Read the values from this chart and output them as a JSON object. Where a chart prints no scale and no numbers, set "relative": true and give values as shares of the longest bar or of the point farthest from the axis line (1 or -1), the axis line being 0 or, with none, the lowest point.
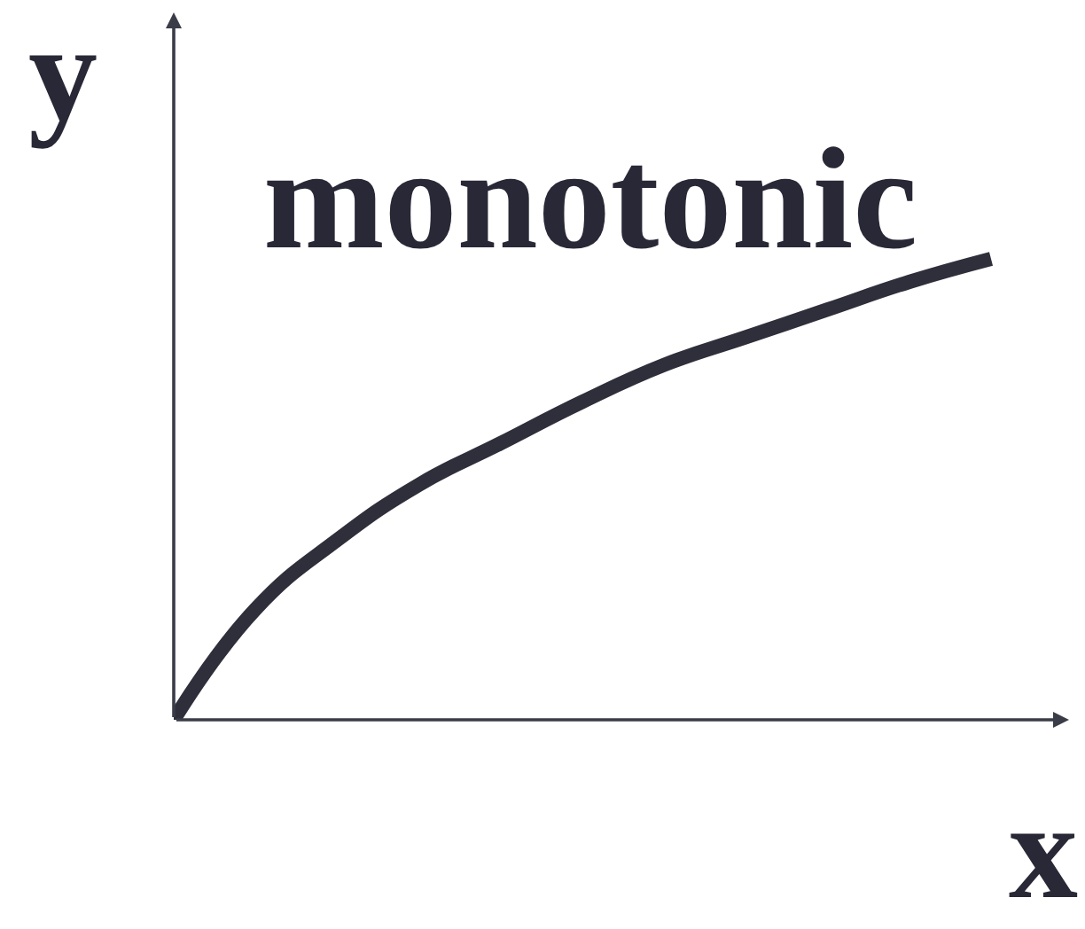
{
  "chart_data": {
    "type": "line",
    "title": "monotonic",
    "xlabel": "x",
    "ylabel": "y",
    "relative": true,
    "categories": [
      null,
      null,
      null,
      null,
      null,
      null,
      null,
      null,
      null,
      null,
      null
    ],
    "series": [
      {
        "color": "#2e2f3a",
        "values": [
          0,
          0.24,
          0.39,
          0.51,
          0.6,
          0.69,
          0.77,
          0.83,
          0.89,
          0.95,
          1
        ]
      }
    ],
    "line_style": "solid"
  }
}
